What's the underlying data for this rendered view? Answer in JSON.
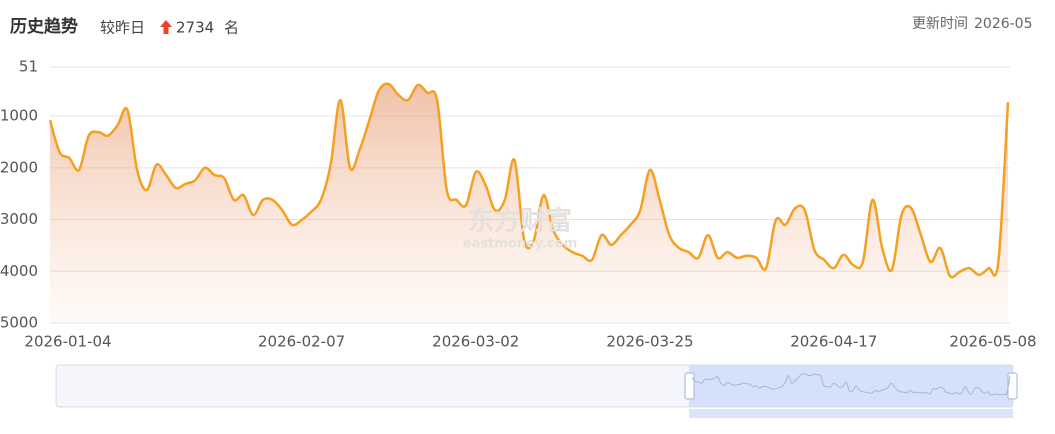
{
  "header": {
    "title": "历史趋势",
    "compare_label": "较昨日",
    "change_value": 2734,
    "change_unit": "名",
    "update_label": "更新时间",
    "update_time": "2026-05"
  },
  "chart_data": {
    "type": "line",
    "watermark": "东方财富",
    "watermark_sub": "eastmoney.com",
    "categories": [
      "2026-01-04",
      null,
      null,
      null,
      null,
      null,
      null,
      null,
      null,
      null,
      null,
      null,
      null,
      null,
      null,
      null,
      null,
      null,
      null,
      null,
      null,
      null,
      null,
      null,
      null,
      null,
      "2026-02-07",
      null,
      null,
      null,
      null,
      null,
      null,
      null,
      null,
      null,
      null,
      null,
      null,
      null,
      null,
      null,
      null,
      null,
      "2026-03-02",
      null,
      null,
      null,
      null,
      null,
      null,
      null,
      null,
      null,
      null,
      null,
      null,
      null,
      null,
      null,
      null,
      null,
      "2026-03-25",
      null,
      null,
      null,
      null,
      null,
      null,
      null,
      null,
      null,
      null,
      null,
      null,
      null,
      null,
      null,
      null,
      null,
      null,
      "2026-04-17",
      null,
      null,
      null,
      null,
      null,
      null,
      null,
      null,
      null,
      null,
      null,
      null,
      null,
      null,
      null,
      null,
      null,
      "2026-05-08"
    ],
    "values": [
      1080,
      1700,
      1810,
      2040,
      1380,
      1310,
      1380,
      1170,
      880,
      2040,
      2430,
      1940,
      2140,
      2390,
      2310,
      2240,
      2000,
      2140,
      2200,
      2620,
      2530,
      2910,
      2620,
      2620,
      2820,
      3100,
      3010,
      2850,
      2620,
      1940,
      690,
      2000,
      1650,
      1080,
      500,
      380,
      590,
      690,
      400,
      550,
      690,
      2430,
      2620,
      2720,
      2080,
      2330,
      2820,
      2620,
      1850,
      3400,
      3400,
      2530,
      3200,
      3490,
      3630,
      3700,
      3780,
      3300,
      3490,
      3300,
      3100,
      2820,
      2040,
      2620,
      3300,
      3550,
      3630,
      3740,
      3300,
      3740,
      3630,
      3740,
      3700,
      3740,
      3940,
      3010,
      3100,
      2780,
      2820,
      3590,
      3780,
      3940,
      3680,
      3880,
      3820,
      2620,
      3550,
      3970,
      2910,
      2780,
      3300,
      3820,
      3550,
      4090,
      4010,
      3940,
      4070,
      3940,
      3820,
      730
    ],
    "color": "#f5a020",
    "ylim": [
      51,
      5000
    ],
    "y_inverted": true,
    "yticks": [
      51,
      1000,
      2000,
      3000,
      4000,
      5000
    ],
    "grid": true
  }
}
